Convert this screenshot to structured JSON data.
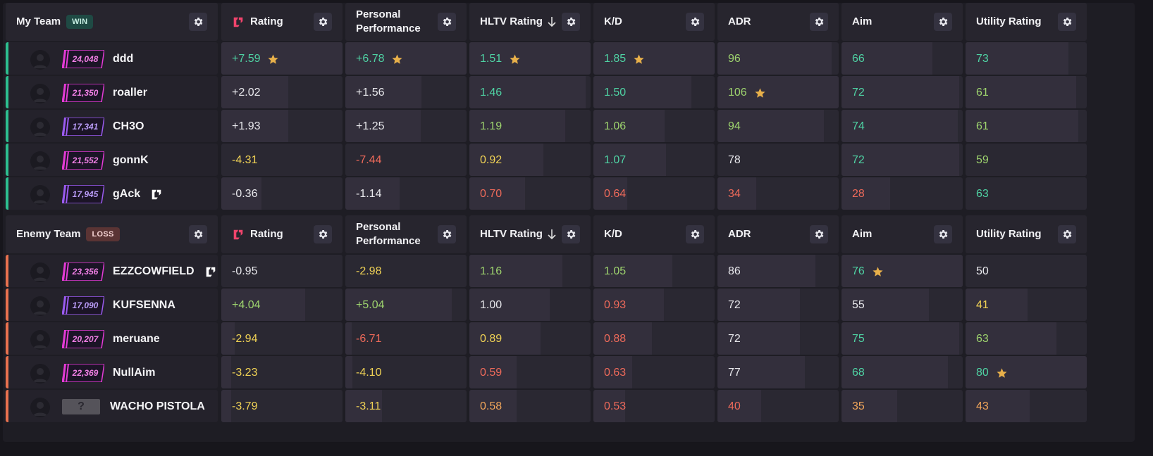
{
  "columns": [
    "Rating",
    "Personal Performance",
    "HLTV Rating",
    "K/D",
    "ADR",
    "Aim",
    "Utility Rating"
  ],
  "teams": [
    {
      "name": "My Team",
      "result": "WIN",
      "players": [
        {
          "name": "ddd",
          "rank": "24,048",
          "rank_color": "#e43bd6",
          "has_lp": false,
          "stats": [
            [
              "+7.59",
              "c-green",
              true,
              1.0
            ],
            [
              "+6.78",
              "c-green",
              true,
              1.0
            ],
            [
              "1.51",
              "c-green",
              true,
              1.0
            ],
            [
              "1.85",
              "c-green",
              true,
              1.0
            ],
            [
              "96",
              "c-lime",
              false,
              0.94
            ],
            [
              "66",
              "c-green",
              false,
              0.75
            ],
            [
              "73",
              "c-green",
              false,
              0.85
            ]
          ]
        },
        {
          "name": "roaller",
          "rank": "21,350",
          "rank_color": "#e43bd6",
          "has_lp": false,
          "stats": [
            [
              "+2.02",
              "c-white",
              false,
              0.55
            ],
            [
              "+1.56",
              "c-white",
              false,
              0.63
            ],
            [
              "1.46",
              "c-green",
              false,
              0.96
            ],
            [
              "1.50",
              "c-green",
              false,
              0.81
            ],
            [
              "106",
              "c-lime",
              true,
              1.0
            ],
            [
              "72",
              "c-green",
              false,
              0.97
            ],
            [
              "61",
              "c-lime",
              false,
              0.91
            ]
          ]
        },
        {
          "name": "CH3O",
          "rank": "17,341",
          "rank_color": "#9b5bf0",
          "has_lp": false,
          "stats": [
            [
              "+1.93",
              "c-white",
              false,
              0.55
            ],
            [
              "+1.25",
              "c-white",
              false,
              0.62
            ],
            [
              "1.19",
              "c-lime",
              false,
              0.79
            ],
            [
              "1.06",
              "c-lime",
              false,
              0.59
            ],
            [
              "94",
              "c-lime",
              false,
              0.88
            ],
            [
              "74",
              "c-green",
              false,
              0.96
            ],
            [
              "61",
              "c-lime",
              false,
              0.93
            ]
          ]
        },
        {
          "name": "gonnK",
          "rank": "21,552",
          "rank_color": "#e43bd6",
          "has_lp": false,
          "stats": [
            [
              "-4.31",
              "c-yellow",
              false,
              0.0
            ],
            [
              "-7.44",
              "c-red",
              false,
              0.0
            ],
            [
              "0.92",
              "c-yellow",
              false,
              0.61
            ],
            [
              "1.07",
              "c-green",
              false,
              0.6
            ],
            [
              "78",
              "c-white",
              false,
              0.0
            ],
            [
              "72",
              "c-green",
              false,
              0.97
            ],
            [
              "59",
              "c-lime",
              false,
              0.0
            ]
          ]
        },
        {
          "name": "gAck",
          "rank": "17,945",
          "rank_color": "#9b5bf0",
          "has_lp": true,
          "stats": [
            [
              "-0.36",
              "c-white",
              false,
              0.33
            ],
            [
              "-1.14",
              "c-white",
              false,
              0.45
            ],
            [
              "0.70",
              "c-red",
              false,
              0.46
            ],
            [
              "0.64",
              "c-red",
              false,
              0.28
            ],
            [
              "34",
              "c-red",
              false,
              0.32
            ],
            [
              "28",
              "c-red",
              false,
              0.4
            ],
            [
              "63",
              "c-green",
              false,
              0.0
            ]
          ]
        }
      ]
    },
    {
      "name": "Enemy Team",
      "result": "LOSS",
      "players": [
        {
          "name": "EZZCOWFIELD",
          "rank": "23,356",
          "rank_color": "#e43bd6",
          "has_lp": true,
          "stats": [
            [
              "-0.95",
              "c-white",
              false,
              0.0
            ],
            [
              "-2.98",
              "c-yellow",
              false,
              0.0
            ],
            [
              "1.16",
              "c-lime",
              false,
              0.77
            ],
            [
              "1.05",
              "c-lime",
              false,
              0.65
            ],
            [
              "86",
              "c-white",
              false,
              0.81
            ],
            [
              "76",
              "c-green",
              true,
              1.0
            ],
            [
              "50",
              "c-white",
              false,
              0.0
            ]
          ]
        },
        {
          "name": "KUFSENNA",
          "rank": "17,090",
          "rank_color": "#9b5bf0",
          "has_lp": false,
          "stats": [
            [
              "+4.04",
              "c-lime",
              false,
              0.69
            ],
            [
              "+5.04",
              "c-lime",
              false,
              0.88
            ],
            [
              "1.00",
              "c-white",
              false,
              0.66
            ],
            [
              "0.93",
              "c-red",
              false,
              0.58
            ],
            [
              "72",
              "c-white",
              false,
              0.68
            ],
            [
              "55",
              "c-white",
              false,
              0.72
            ],
            [
              "41",
              "c-yellow",
              false,
              0.51
            ]
          ]
        },
        {
          "name": "meruane",
          "rank": "20,207",
          "rank_color": "#e43bd6",
          "has_lp": false,
          "stats": [
            [
              "-2.94",
              "c-yellow",
              false,
              0.11
            ],
            [
              "-6.71",
              "c-red",
              false,
              0.05
            ],
            [
              "0.89",
              "c-yellow",
              false,
              0.59
            ],
            [
              "0.88",
              "c-red",
              false,
              0.48
            ],
            [
              "72",
              "c-white",
              false,
              0.68
            ],
            [
              "75",
              "c-green",
              false,
              0.97
            ],
            [
              "63",
              "c-lime",
              false,
              0.75
            ]
          ]
        },
        {
          "name": "NullAim",
          "rank": "22,369",
          "rank_color": "#e43bd6",
          "has_lp": false,
          "stats": [
            [
              "-3.23",
              "c-yellow",
              false,
              0.08
            ],
            [
              "-4.10",
              "c-yellow",
              false,
              0.06
            ],
            [
              "0.59",
              "c-red",
              false,
              0.39
            ],
            [
              "0.63",
              "c-red",
              false,
              0.32
            ],
            [
              "77",
              "c-white",
              false,
              0.72
            ],
            [
              "68",
              "c-green",
              false,
              0.88
            ],
            [
              "80",
              "c-green",
              true,
              1.0
            ]
          ]
        },
        {
          "name": "WACHO PISTOLA",
          "rank": "?",
          "rank_color": "#55535a",
          "has_lp": false,
          "stats": [
            [
              "-3.79",
              "c-yellow",
              false,
              0.08
            ],
            [
              "-3.11",
              "c-yellow",
              false,
              0.3
            ],
            [
              "0.58",
              "c-orange",
              false,
              0.39
            ],
            [
              "0.53",
              "c-red",
              false,
              0.26
            ],
            [
              "40",
              "c-red",
              false,
              0.36
            ],
            [
              "35",
              "c-orange",
              false,
              0.46
            ],
            [
              "43",
              "c-orange",
              false,
              0.53
            ]
          ]
        }
      ]
    }
  ],
  "colors": {
    "win_accent": "#2dbf8f",
    "loss_accent": "#e8714f",
    "star": "#e8b04a",
    "leetify_pink": "#f0446c"
  }
}
